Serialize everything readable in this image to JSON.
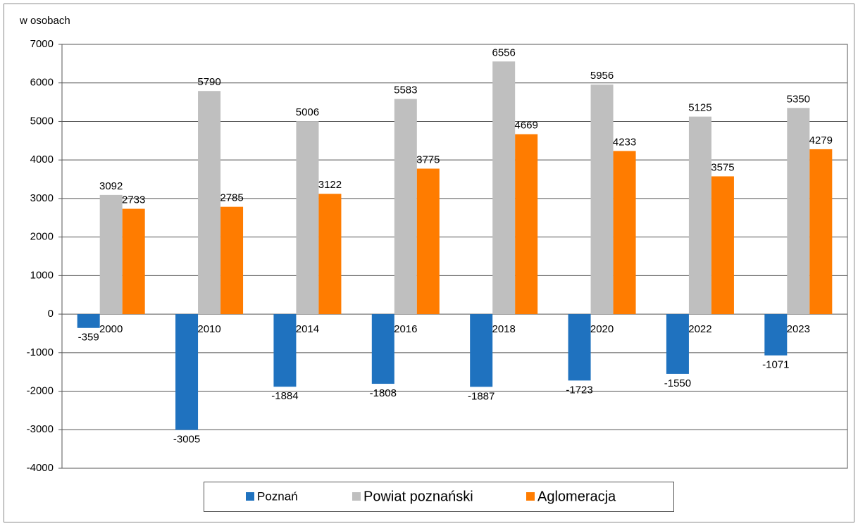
{
  "chart_data": {
    "type": "bar",
    "y_axis_label": "w osobach",
    "categories": [
      "2000",
      "2010",
      "2014",
      "2016",
      "2018",
      "2020",
      "2022",
      "2023"
    ],
    "series": [
      {
        "name": "Poznań",
        "color": "#1f72bf",
        "values": [
          -359,
          -3005,
          -1884,
          -1808,
          -1887,
          -1723,
          -1550,
          -1071
        ]
      },
      {
        "name": "Powiat poznański",
        "color": "#bfbfbf",
        "values": [
          3092,
          5790,
          5006,
          5583,
          6556,
          5956,
          5125,
          5350
        ]
      },
      {
        "name": "Aglomeracja",
        "color": "#ff7c00",
        "values": [
          2733,
          2785,
          3122,
          3775,
          4669,
          4233,
          3575,
          4279
        ]
      }
    ],
    "ylim": [
      -4000,
      7000
    ],
    "yticks": [
      -4000,
      -3000,
      -2000,
      -1000,
      0,
      1000,
      2000,
      3000,
      4000,
      5000,
      6000,
      7000
    ],
    "grid": true,
    "legend": "bottom"
  }
}
